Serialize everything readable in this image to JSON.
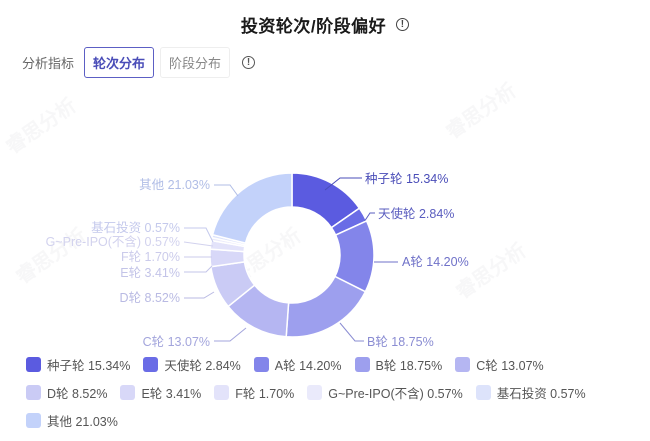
{
  "header": {
    "title": "投资轮次/阶段偏好",
    "info_icon": "info-circle-icon"
  },
  "controls": {
    "label": "分析指标",
    "tabs": [
      {
        "label": "轮次分布",
        "active": true
      },
      {
        "label": "阶段分布",
        "active": false
      }
    ],
    "info_icon": "info-circle-icon"
  },
  "watermark": "睿思分析",
  "chart_data": {
    "type": "pie",
    "subtype": "donut",
    "title": "投资轮次/阶段偏好",
    "categories": [
      "种子轮",
      "天使轮",
      "A轮",
      "B轮",
      "C轮",
      "D轮",
      "E轮",
      "F轮",
      "G~Pre-IPO(不含)",
      "基石投资",
      "其他"
    ],
    "values": [
      15.34,
      2.84,
      14.2,
      18.75,
      13.07,
      8.52,
      3.41,
      1.7,
      0.57,
      0.57,
      21.03
    ],
    "labels": [
      "种子轮 15.34%",
      "天使轮 2.84%",
      "A轮 14.20%",
      "B轮 18.75%",
      "C轮 13.07%",
      "D轮 8.52%",
      "E轮 3.41%",
      "F轮 1.70%",
      "G~Pre-IPO(不含) 0.57%",
      "基石投资 0.57%",
      "其他 21.03%"
    ],
    "colors": [
      "#5b5be0",
      "#6a6ce6",
      "#8385ea",
      "#9d9fee",
      "#b5b6f2",
      "#cacbf5",
      "#d8d8f8",
      "#e3e3fa",
      "#eaeafb",
      "#dde3fb",
      "#c3d2fa"
    ],
    "label_colors": [
      "#4a4db8",
      "#5a5dbf",
      "#6f71c8",
      "#8a8cd2",
      "#a3a5dc",
      "#b9bae3",
      "#c3c4e8",
      "#cbcbeb",
      "#d2d2ee",
      "#c4c9ec",
      "#b0bde6"
    ],
    "legend_position": "bottom",
    "center": [
      292,
      255
    ],
    "outer_radius": 82,
    "inner_radius": 48
  },
  "legend": [
    {
      "label": "种子轮 15.34%",
      "color": "#5b5be0"
    },
    {
      "label": "天使轮 2.84%",
      "color": "#6a6ce6"
    },
    {
      "label": "A轮 14.20%",
      "color": "#8385ea"
    },
    {
      "label": "B轮 18.75%",
      "color": "#9d9fee"
    },
    {
      "label": "C轮 13.07%",
      "color": "#b5b6f2"
    },
    {
      "label": "D轮 8.52%",
      "color": "#cacbf5"
    },
    {
      "label": "E轮 3.41%",
      "color": "#d8d8f8"
    },
    {
      "label": "F轮 1.70%",
      "color": "#e3e3fa"
    },
    {
      "label": "G~Pre-IPO(不含) 0.57%",
      "color": "#eaeafb"
    },
    {
      "label": "基石投资 0.57%",
      "color": "#dde3fb"
    },
    {
      "label": "其他 21.03%",
      "color": "#c3d2fa"
    }
  ]
}
